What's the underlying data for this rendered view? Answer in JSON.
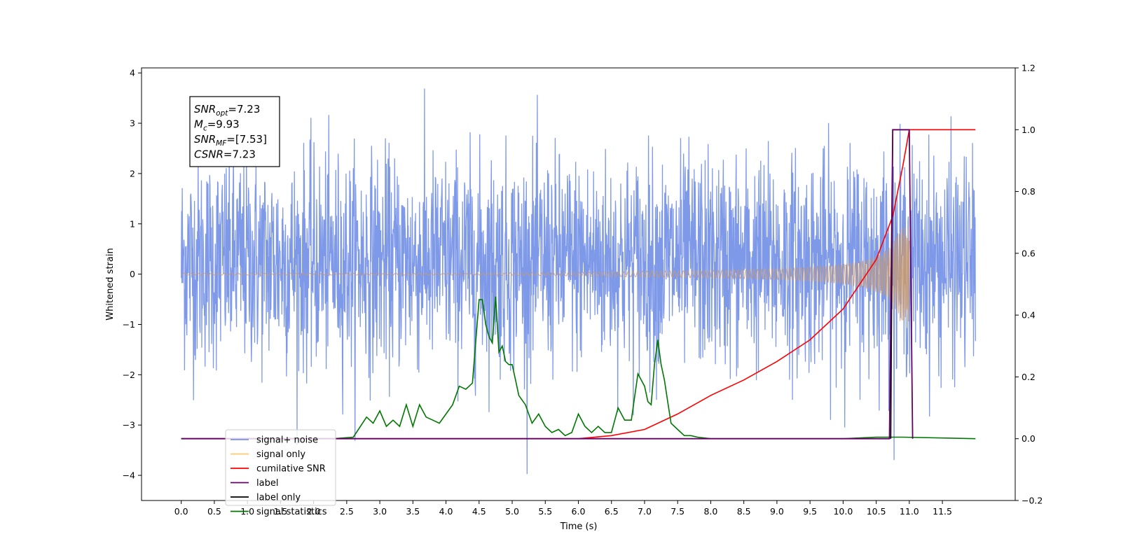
{
  "chart_data": {
    "type": "line",
    "xlabel": "Time (s)",
    "ylabel": "Whitened strain",
    "xlim": [
      -0.6,
      12.6
    ],
    "ylim": [
      -4.5,
      4.1
    ],
    "y2lim": [
      -0.2,
      1.2
    ],
    "xticks": [
      0.0,
      0.5,
      1.0,
      1.5,
      2.0,
      2.5,
      3.0,
      3.5,
      4.0,
      4.5,
      5.0,
      5.5,
      6.0,
      6.5,
      7.0,
      7.5,
      8.0,
      8.5,
      9.0,
      9.5,
      10.0,
      10.5,
      11.0,
      11.5
    ],
    "xtick_labels": [
      "0.0",
      "0.5",
      "1.0",
      "1.5",
      "2.0",
      "2.5",
      "3.0",
      "3.5",
      "4.0",
      "4.5",
      "5.0",
      "5.5",
      "6.0",
      "6.5",
      "7.0",
      "7.5",
      "8.0",
      "8.5",
      "9.0",
      "9.5",
      "10.0",
      "10.5",
      "11.0",
      "11.5"
    ],
    "yticks": [
      -4,
      -3,
      -2,
      -1,
      0,
      1,
      2,
      3,
      4
    ],
    "ytick_labels": [
      "−4",
      "−3",
      "−2",
      "−1",
      "0",
      "1",
      "2",
      "3",
      "4"
    ],
    "y2ticks": [
      -0.2,
      0.0,
      0.2,
      0.4,
      0.6,
      0.8,
      1.0,
      1.2
    ],
    "y2tick_labels": [
      "−0.2",
      "0.0",
      "0.2",
      "0.4",
      "0.6",
      "0.8",
      "1.0",
      "1.2"
    ],
    "annotation": {
      "lines": [
        {
          "base": "SNR",
          "sub": "opt",
          "rest": "=7.23"
        },
        {
          "base": "M",
          "sub": "c",
          "rest": "=9.93"
        },
        {
          "base": "SNR",
          "sub": "MF",
          "rest": "=[7.53]"
        },
        {
          "base": "CSNR",
          "sub": "",
          "rest": "=7.23"
        }
      ]
    },
    "legend": {
      "placement": "lower-left",
      "entries": [
        {
          "key": "noise",
          "label": "signal+ noise",
          "color": "#7894e8"
        },
        {
          "key": "signal",
          "label": "signal only",
          "color": "#ffc870"
        },
        {
          "key": "csnr",
          "label": "cumilative SNR",
          "color": "#ff0000"
        },
        {
          "key": "label",
          "label": "label",
          "color": "#660066"
        },
        {
          "key": "label_only",
          "label": "label only",
          "color": "#000000"
        },
        {
          "key": "stats",
          "label": "signal statistics",
          "color": "#007700"
        }
      ]
    },
    "series": [
      {
        "key": "noise",
        "axis": "left",
        "kind": "noise",
        "x_range": [
          0.0,
          12.0
        ],
        "typical_range": [
          -2.0,
          2.5
        ],
        "max": 3.7,
        "min": -4.1
      },
      {
        "key": "signal",
        "axis": "left",
        "kind": "chirp",
        "x_range": [
          0.0,
          11.0
        ],
        "peak_time": 10.9,
        "amplitude_peak": 0.95
      },
      {
        "key": "csnr",
        "axis": "right",
        "x": [
          0.0,
          6.0,
          6.5,
          7.0,
          7.5,
          8.0,
          8.5,
          9.0,
          9.5,
          10.0,
          10.5,
          10.75,
          10.9,
          11.0,
          12.0
        ],
        "y": [
          0.0,
          0.0,
          0.01,
          0.03,
          0.08,
          0.14,
          0.19,
          0.25,
          0.32,
          0.42,
          0.58,
          0.72,
          0.88,
          1.0,
          1.0
        ]
      },
      {
        "key": "label",
        "axis": "right",
        "x": [
          0.0,
          10.7,
          10.75,
          11.0,
          11.05
        ],
        "y": [
          0.0,
          0.0,
          1.0,
          1.0,
          0.0
        ]
      },
      {
        "key": "label_only",
        "axis": "right",
        "x": [
          10.72,
          10.75,
          11.0
        ],
        "y": [
          0.0,
          1.0,
          1.0
        ]
      },
      {
        "key": "stats",
        "axis": "right",
        "x": [
          0.0,
          2.3,
          2.6,
          2.8,
          2.9,
          3.0,
          3.1,
          3.2,
          3.3,
          3.4,
          3.5,
          3.6,
          3.7,
          3.8,
          3.9,
          4.0,
          4.1,
          4.2,
          4.3,
          4.4,
          4.5,
          4.55,
          4.6,
          4.65,
          4.7,
          4.75,
          4.8,
          4.85,
          4.9,
          4.95,
          5.0,
          5.05,
          5.1,
          5.2,
          5.3,
          5.4,
          5.5,
          5.6,
          5.7,
          5.8,
          5.9,
          6.0,
          6.1,
          6.2,
          6.3,
          6.4,
          6.5,
          6.6,
          6.7,
          6.8,
          6.9,
          7.0,
          7.05,
          7.1,
          7.15,
          7.2,
          7.25,
          7.3,
          7.35,
          7.4,
          7.5,
          7.6,
          7.7,
          7.8,
          8.0,
          8.5,
          9.0,
          10.0,
          10.5,
          10.7,
          10.9,
          12.0
        ],
        "y": [
          0.0,
          0.0,
          0.005,
          0.07,
          0.05,
          0.09,
          0.04,
          0.06,
          0.04,
          0.11,
          0.04,
          0.11,
          0.07,
          0.06,
          0.05,
          0.08,
          0.11,
          0.17,
          0.16,
          0.18,
          0.45,
          0.45,
          0.37,
          0.33,
          0.31,
          0.46,
          0.28,
          0.3,
          0.25,
          0.24,
          0.24,
          0.19,
          0.14,
          0.11,
          0.05,
          0.08,
          0.04,
          0.02,
          0.03,
          0.01,
          0.02,
          0.08,
          0.04,
          0.02,
          0.04,
          0.02,
          0.02,
          0.1,
          0.06,
          0.06,
          0.21,
          0.17,
          0.12,
          0.11,
          0.24,
          0.32,
          0.24,
          0.19,
          0.12,
          0.05,
          0.03,
          0.01,
          0.01,
          0.005,
          0.0,
          0.0,
          0.0,
          0.0,
          0.005,
          0.005,
          0.005,
          0.0
        ]
      }
    ]
  }
}
